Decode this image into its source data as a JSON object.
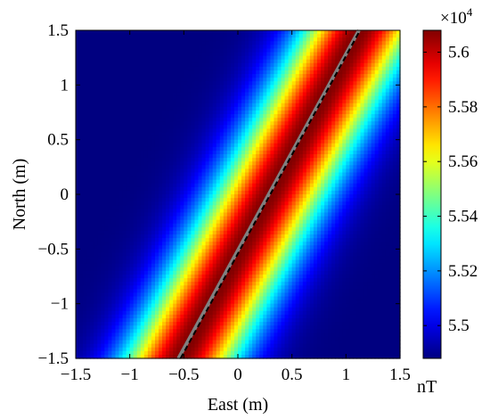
{
  "chart_data": {
    "type": "heatmap",
    "xlabel": "East (m)",
    "ylabel": "North (m)",
    "xlim": [
      -1.5,
      1.5
    ],
    "ylim": [
      -1.5,
      1.5
    ],
    "x_ticks": [
      -1.5,
      -1,
      -0.5,
      0,
      0.5,
      1,
      1.5
    ],
    "y_ticks": [
      -1.5,
      -1,
      -0.5,
      0,
      0.5,
      1,
      1.5
    ],
    "x_tick_labels": [
      "−1.5",
      "−1",
      "−0.5",
      "0",
      "0.5",
      "1",
      "1.5"
    ],
    "y_tick_labels": [
      "−1.5",
      "−1",
      "−0.5",
      "0",
      "0.5",
      "1",
      "1.5"
    ],
    "colormap": "jet",
    "colorbar": {
      "label": "nT",
      "multiplier_base": "×10",
      "multiplier_exponent": "4",
      "range": [
        54880,
        56080
      ],
      "ticks": [
        55000,
        55200,
        55400,
        55600,
        55800,
        56000
      ],
      "tick_labels": [
        "5.5",
        "5.52",
        "5.54",
        "5.56",
        "5.58",
        "5.6"
      ]
    },
    "field": {
      "description_of_peak": "ridge along line from (-0.53,-1.5) to (1.13,1.5)",
      "line_start": [
        -0.53,
        -1.5
      ],
      "line_end": [
        1.13,
        1.5
      ],
      "peak_value": 56080,
      "background_value": 54880
    },
    "overlays": [
      {
        "type": "line",
        "color": "#808080",
        "style": "solid",
        "from": [
          -0.55,
          -1.5
        ],
        "to": [
          1.12,
          1.5
        ]
      },
      {
        "type": "line",
        "color": "#000000",
        "style": "dashed",
        "from": [
          -0.53,
          -1.5
        ],
        "to": [
          1.13,
          1.5
        ]
      }
    ]
  }
}
